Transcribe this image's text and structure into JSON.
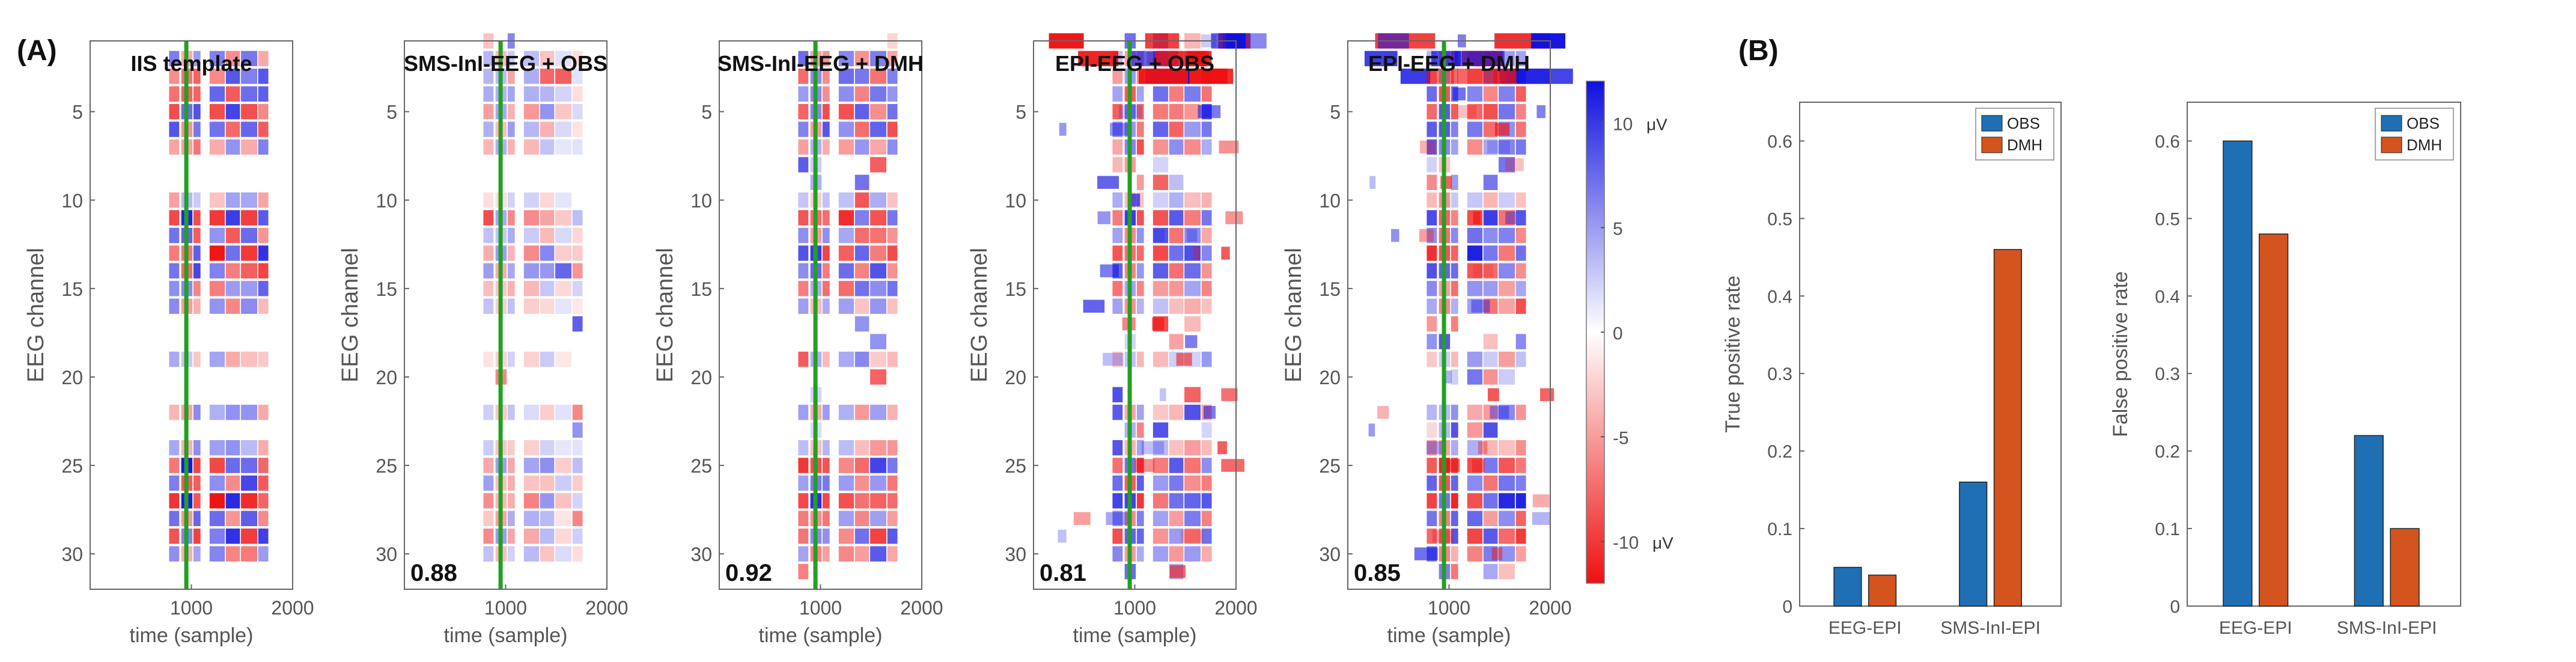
{
  "panel_a_label": "(A)",
  "panel_b_label": "(B)",
  "colors": {
    "positive": "#1010e0",
    "negative": "#ee1111",
    "template_line": "#22a022",
    "obs_bar": "#1f6fb5",
    "dmh_bar": "#d3541f",
    "axis": "#333333",
    "tick_text": "#555555"
  },
  "chart_data": [
    {
      "type": "heatmap",
      "title": "IIS template",
      "xlabel": "time (sample)",
      "ylabel": "EEG channel",
      "x_ticks": [
        1000,
        2000
      ],
      "y_ticks": [
        5,
        10,
        15,
        20,
        25,
        30
      ],
      "xlim": [
        0,
        2000
      ],
      "ylim": [
        1,
        31
      ],
      "template_marker_sample": 950,
      "correlation": ""
    },
    {
      "type": "heatmap",
      "title": "SMS-InI-EEG + OBS",
      "xlabel": "time (sample)",
      "ylabel": "EEG channel",
      "x_ticks": [
        1000,
        2000
      ],
      "y_ticks": [
        5,
        10,
        15,
        20,
        25,
        30
      ],
      "xlim": [
        0,
        2000
      ],
      "ylim": [
        1,
        31
      ],
      "template_marker_sample": 950,
      "correlation": "0.88"
    },
    {
      "type": "heatmap",
      "title": "SMS-InI-EEG + DMH",
      "xlabel": "time (sample)",
      "ylabel": "EEG channel",
      "x_ticks": [
        1000,
        2000
      ],
      "y_ticks": [
        5,
        10,
        15,
        20,
        25,
        30
      ],
      "xlim": [
        0,
        2000
      ],
      "ylim": [
        1,
        31
      ],
      "template_marker_sample": 950,
      "correlation": "0.92"
    },
    {
      "type": "heatmap",
      "title": "EPI-EEG + OBS",
      "xlabel": "time (sample)",
      "ylabel": "EEG channel",
      "x_ticks": [
        1000,
        2000
      ],
      "y_ticks": [
        5,
        10,
        15,
        20,
        25,
        30
      ],
      "xlim": [
        0,
        2000
      ],
      "ylim": [
        1,
        31
      ],
      "template_marker_sample": 950,
      "correlation": "0.81"
    },
    {
      "type": "heatmap",
      "title": "EPI-EEG + DMH",
      "xlabel": "time (sample)",
      "ylabel": "EEG channel",
      "x_ticks": [
        1000,
        2000
      ],
      "y_ticks": [
        5,
        10,
        15,
        20,
        25,
        30
      ],
      "xlim": [
        0,
        2000
      ],
      "ylim": [
        1,
        31
      ],
      "template_marker_sample": 950,
      "correlation": "0.85"
    },
    {
      "type": "colorbar",
      "ticks": [
        10,
        5,
        0,
        -5,
        -10
      ],
      "tick_labels": [
        "10",
        "5",
        "0",
        "-5",
        "-10"
      ],
      "unit": "μV",
      "range": [
        -12,
        12
      ]
    },
    {
      "type": "bar",
      "categories": [
        "EEG-EPI",
        "SMS-InI-EPI"
      ],
      "series": [
        {
          "name": "OBS",
          "values": [
            0.05,
            0.16
          ]
        },
        {
          "name": "DMH",
          "values": [
            0.04,
            0.46
          ]
        }
      ],
      "title": "",
      "xlabel": "",
      "ylabel": "True positive rate",
      "ylim": [
        0,
        0.65
      ],
      "y_ticks": [
        0,
        0.1,
        0.2,
        0.3,
        0.4,
        0.5,
        0.6
      ],
      "legend": "top-right"
    },
    {
      "type": "bar",
      "categories": [
        "EEG-EPI",
        "SMS-InI-EPI"
      ],
      "series": [
        {
          "name": "OBS",
          "values": [
            0.6,
            0.22
          ]
        },
        {
          "name": "DMH",
          "values": [
            0.48,
            0.1
          ]
        }
      ],
      "title": "",
      "xlabel": "",
      "ylabel": "False positive rate",
      "ylim": [
        0,
        0.65
      ],
      "y_ticks": [
        0,
        0.1,
        0.2,
        0.3,
        0.4,
        0.5,
        0.6
      ],
      "legend": "top-right"
    }
  ]
}
